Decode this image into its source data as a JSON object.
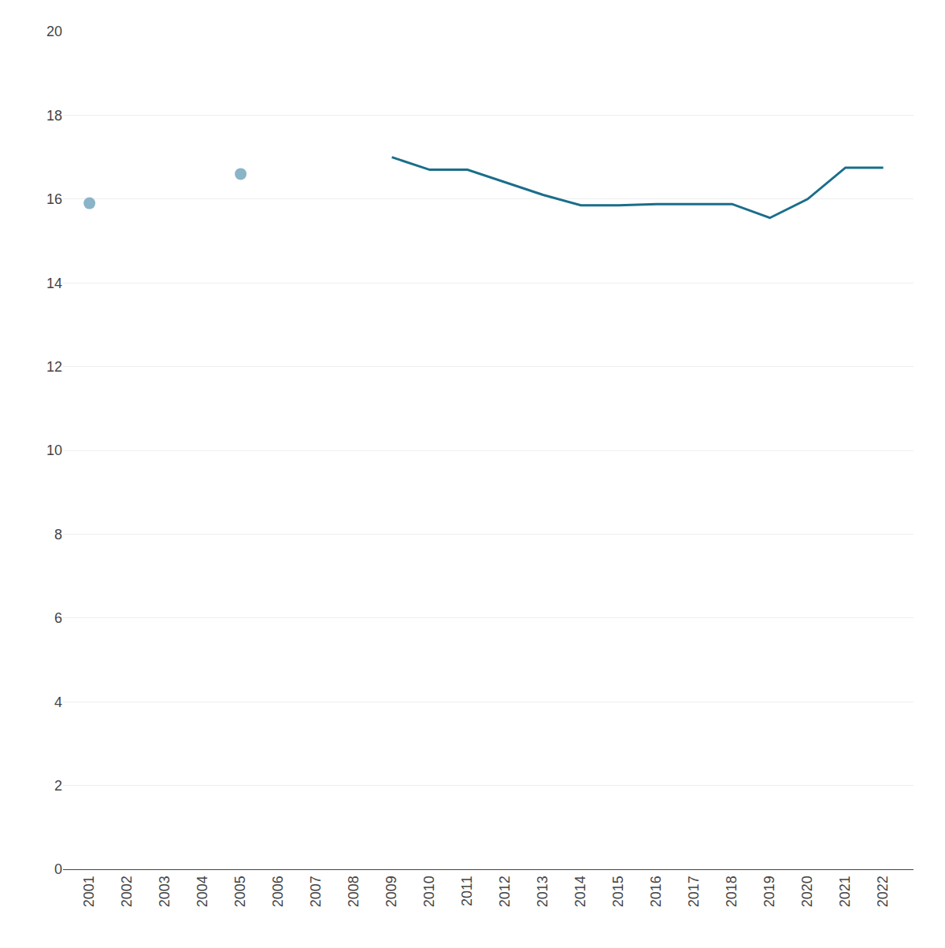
{
  "chart_data": {
    "type": "line",
    "series": [
      {
        "type": "scatter",
        "marker": "circle",
        "color": "#8ab4c8",
        "x": [
          2001,
          2005
        ],
        "values": [
          15.9,
          16.6
        ]
      },
      {
        "type": "line",
        "color": "#1a6e8a",
        "x": [
          2009,
          2010,
          2011,
          2012,
          2013,
          2014,
          2015,
          2016,
          2017,
          2018,
          2019,
          2020,
          2021,
          2022
        ],
        "values": [
          17.0,
          16.7,
          16.7,
          16.4,
          16.1,
          15.85,
          15.85,
          15.88,
          15.88,
          15.88,
          15.55,
          16.0,
          16.75,
          16.75
        ]
      }
    ],
    "xlim": [
      2000.3,
      2022.8
    ],
    "xticks": [
      2001,
      2002,
      2003,
      2004,
      2005,
      2006,
      2007,
      2008,
      2009,
      2010,
      2011,
      2012,
      2013,
      2014,
      2015,
      2016,
      2017,
      2018,
      2019,
      2020,
      2021,
      2022
    ],
    "ylim": [
      0,
      20
    ],
    "yticks": [
      0,
      2,
      4,
      6,
      8,
      10,
      12,
      14,
      16,
      18,
      20
    ],
    "grid": true
  }
}
